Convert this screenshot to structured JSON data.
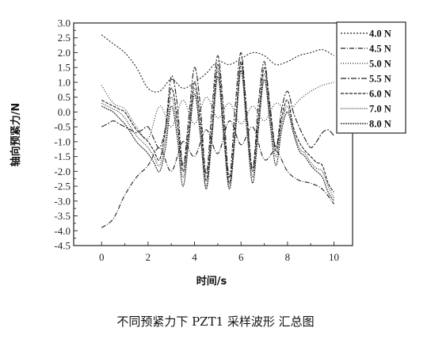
{
  "caption": "不同预紧力下 PZT1 采样波形 汇总图",
  "chart_data": {
    "type": "line",
    "xlabel": "时间/s",
    "ylabel": "轴向预紧力/N",
    "xlim": [
      -1.2,
      10.8
    ],
    "ylim": [
      -4.5,
      3.0
    ],
    "xticks": [
      0,
      2,
      4,
      6,
      8,
      10
    ],
    "yticks": [
      3.0,
      2.5,
      2.0,
      1.5,
      1.0,
      0.5,
      0.0,
      -0.5,
      -1.0,
      -1.5,
      -2.0,
      -2.5,
      -3.0,
      -3.5,
      -4.0,
      -4.5
    ],
    "ytick_labels": [
      "3.0",
      "2.5",
      "2.0",
      "1.5",
      "1.0",
      "0.5",
      "0.0",
      "-0.5",
      "-1.0",
      "-1.5",
      "-2.0",
      "-2.5",
      "-3.0",
      "-3.5",
      "-4.0",
      "-4.5"
    ],
    "grid": false,
    "legend_position": "top-right",
    "series": [
      {
        "name": "4.0 N",
        "dash": "2,2",
        "x": [
          0,
          0.5,
          1,
          1.5,
          2,
          2.5,
          3,
          3.5,
          4,
          4.5,
          5,
          5.5,
          6,
          6.5,
          7,
          7.5,
          8,
          8.5,
          9,
          9.5,
          10
        ],
        "y": [
          2.6,
          2.3,
          2.0,
          1.5,
          0.8,
          0.7,
          1.1,
          0.8,
          1.0,
          1.3,
          1.7,
          1.6,
          1.8,
          2.0,
          1.9,
          1.6,
          1.7,
          1.9,
          2.0,
          2.1,
          1.9
        ]
      },
      {
        "name": "4.5 N",
        "dash": "6,2,1,2",
        "x": [
          0,
          0.5,
          1,
          1.5,
          2,
          2.5,
          3,
          3.5,
          4,
          4.5,
          5,
          5.5,
          6,
          6.5,
          7,
          7.5,
          8,
          8.5,
          9,
          9.5,
          10
        ],
        "y": [
          -3.9,
          -3.6,
          -2.8,
          -2.2,
          -1.8,
          -1.2,
          -2.0,
          -1.0,
          -1.5,
          -0.6,
          -1.4,
          -0.3,
          -1.1,
          -0.5,
          -1.6,
          -1.3,
          -2.0,
          -2.3,
          -2.4,
          -2.6,
          -3.1
        ]
      },
      {
        "name": "5.0 N",
        "dash": "1,2",
        "x": [
          0,
          0.5,
          1,
          1.5,
          2,
          2.5,
          3,
          3.5,
          4,
          4.5,
          5,
          5.5,
          6,
          6.5,
          7,
          7.5,
          8,
          8.5,
          9,
          9.5,
          10
        ],
        "y": [
          0.9,
          0.3,
          0.1,
          -0.5,
          -0.9,
          0.2,
          -0.5,
          0.4,
          -0.4,
          0.5,
          -0.2,
          0.3,
          -0.4,
          0.2,
          -0.3,
          0.3,
          0.0,
          0.4,
          0.7,
          0.9,
          1.0
        ]
      },
      {
        "name": "5.5 N",
        "dash": "7,2,2,2",
        "x": [
          0,
          0.25,
          0.5,
          0.75,
          1,
          1.25,
          1.5,
          1.75,
          2,
          2.25,
          2.5,
          2.75,
          3,
          3.25,
          3.5,
          3.75,
          4,
          4.25,
          4.5,
          4.75,
          5,
          5.25,
          5.5,
          5.75,
          6,
          6.25,
          6.5,
          6.75,
          7,
          7.25,
          7.5,
          7.75,
          8,
          8.25,
          8.5,
          8.75,
          9,
          9.25,
          9.5,
          9.75,
          10
        ],
        "y": [
          -0.5,
          -0.4,
          -0.3,
          -0.4,
          -0.5,
          -0.6,
          -0.7,
          -0.6,
          -0.5,
          -0.9,
          -1.2,
          -0.5,
          1.2,
          0.3,
          -1.8,
          -0.2,
          1.5,
          0.2,
          -2.1,
          0.1,
          1.9,
          0.1,
          -2.2,
          0.2,
          2.0,
          0.0,
          -1.9,
          0.3,
          1.7,
          0.2,
          -1.2,
          0.1,
          0.7,
          0.0,
          -0.5,
          -0.9,
          -1.2,
          -1.0,
          -0.7,
          -0.6,
          -0.8
        ]
      },
      {
        "name": "6.0 N",
        "dash": "4,1.5",
        "x": [
          0,
          0.25,
          0.5,
          0.75,
          1,
          1.25,
          1.5,
          1.75,
          2,
          2.25,
          2.5,
          2.75,
          3,
          3.25,
          3.5,
          3.75,
          4,
          4.25,
          4.5,
          4.75,
          5,
          5.25,
          5.5,
          5.75,
          6,
          6.25,
          6.5,
          6.75,
          7,
          7.25,
          7.5,
          7.75,
          8,
          8.25,
          8.5,
          8.75,
          9,
          9.25,
          9.5,
          9.75,
          10
        ],
        "y": [
          0.4,
          0.3,
          0.2,
          0.1,
          0.0,
          -0.3,
          -0.6,
          -0.8,
          -1.0,
          -1.3,
          -1.6,
          -0.6,
          0.8,
          -0.2,
          -2.0,
          -0.6,
          1.0,
          -0.3,
          -2.3,
          -0.5,
          1.6,
          -0.4,
          -2.4,
          -0.5,
          1.7,
          -0.2,
          -2.0,
          -0.2,
          1.5,
          0.0,
          -1.3,
          -0.2,
          0.4,
          -0.5,
          -1.0,
          -1.3,
          -1.5,
          -1.7,
          -1.8,
          -2.4,
          -2.7
        ]
      },
      {
        "name": "7.0 N",
        "dash": "1,1.5",
        "x": [
          0,
          0.25,
          0.5,
          0.75,
          1,
          1.25,
          1.5,
          1.75,
          2,
          2.25,
          2.5,
          2.75,
          3,
          3.25,
          3.5,
          3.75,
          4,
          4.25,
          4.5,
          4.75,
          5,
          5.25,
          5.5,
          5.75,
          6,
          6.25,
          6.5,
          6.75,
          7,
          7.25,
          7.5,
          7.75,
          8,
          8.25,
          8.5,
          8.75,
          9,
          9.25,
          9.5,
          9.75,
          10
        ],
        "y": [
          0.3,
          0.2,
          0.1,
          0.0,
          -0.2,
          -0.5,
          -0.8,
          -1.0,
          -1.2,
          -1.5,
          -1.8,
          -0.9,
          0.5,
          -0.5,
          -2.2,
          -0.8,
          0.8,
          -0.6,
          -2.5,
          -0.7,
          1.4,
          -0.6,
          -2.5,
          -0.6,
          1.6,
          -0.4,
          -2.2,
          -0.4,
          1.3,
          -0.2,
          -1.5,
          -0.4,
          0.2,
          -0.6,
          -1.2,
          -1.4,
          -1.7,
          -1.9,
          -2.0,
          -2.5,
          -2.9
        ]
      },
      {
        "name": "8.0 N",
        "dash": "2,1",
        "x": [
          0,
          0.25,
          0.5,
          0.75,
          1,
          1.25,
          1.5,
          1.75,
          2,
          2.25,
          2.5,
          2.75,
          3,
          3.25,
          3.5,
          3.75,
          4,
          4.25,
          4.5,
          4.75,
          5,
          5.25,
          5.5,
          5.75,
          6,
          6.25,
          6.5,
          6.75,
          7,
          7.25,
          7.5,
          7.75,
          8,
          8.25,
          8.5,
          8.75,
          9,
          9.25,
          9.5,
          9.75,
          10
        ],
        "y": [
          0.2,
          0.1,
          0.0,
          -0.2,
          -0.4,
          -0.7,
          -1.0,
          -1.2,
          -1.4,
          -1.7,
          -2.0,
          -1.2,
          0.2,
          -0.8,
          -2.5,
          -1.0,
          0.6,
          -0.8,
          -2.6,
          -0.9,
          1.2,
          -0.8,
          -2.6,
          -0.8,
          1.4,
          -0.6,
          -2.4,
          -0.6,
          1.1,
          -0.4,
          -1.8,
          -0.6,
          0.0,
          -0.7,
          -1.3,
          -1.5,
          -1.8,
          -2.0,
          -2.2,
          -2.7,
          -3.0
        ]
      }
    ]
  }
}
